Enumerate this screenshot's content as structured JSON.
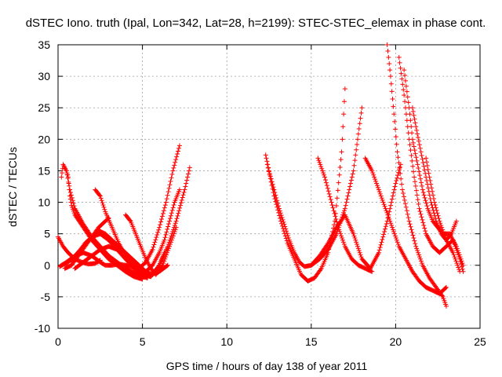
{
  "chart_data": {
    "type": "scatter",
    "title": "dSTEC Iono. truth (Ipal, Lon=342, Lat=28, h=2199): STEC-STEC_elemax in phase cont.",
    "xlabel": "GPS time / hours of day 138 of year 2011",
    "ylabel": "dSTEC  / TECUs",
    "xlim": [
      0,
      25
    ],
    "ylim": [
      -10,
      35
    ],
    "xticks": [
      "0",
      "5",
      "10",
      "15",
      "20",
      "25"
    ],
    "yticks": [
      "-10",
      "-5",
      "0",
      "5",
      "10",
      "15",
      "20",
      "25",
      "30",
      "35"
    ],
    "grid": true,
    "marker": "+",
    "color": "#ff0000",
    "series": [
      {
        "x": [
          0.0,
          0.3,
          0.6,
          1.0,
          1.4,
          1.8,
          2.2,
          2.5
        ],
        "y": [
          4.5,
          3.0,
          2.0,
          1.0,
          0.5,
          0.2,
          0.3,
          0.8
        ]
      },
      {
        "x": [
          0.2,
          0.3,
          0.5,
          0.7,
          1.0,
          1.5,
          2.0,
          2.5,
          3.0,
          3.5,
          4.0,
          4.5,
          5.0,
          5.3
        ],
        "y": [
          14,
          16,
          15,
          12,
          9,
          6.5,
          4.5,
          3,
          1.5,
          0.5,
          -0.5,
          -1.2,
          -1.8,
          -2.0
        ]
      },
      {
        "x": [
          0.5,
          0.6,
          0.7,
          0.8,
          1.0,
          1.5,
          2.0,
          2.5,
          3.0,
          3.5,
          4.0,
          4.5,
          5.0
        ],
        "y": [
          15,
          14,
          11,
          9.5,
          8,
          6,
          4,
          2.5,
          1,
          0,
          -1,
          -1.8,
          -2.2
        ]
      },
      {
        "x": [
          0.1,
          0.5,
          1.0,
          1.5,
          2.0,
          2.5,
          2.8,
          3.2,
          3.6,
          4.0,
          4.4,
          4.8,
          5.2,
          5.6,
          6.0,
          6.4,
          6.8,
          7.2
        ],
        "y": [
          -0.2,
          0.5,
          1.5,
          2.0,
          1.5,
          0.5,
          0.0,
          0.0,
          0.2,
          0.0,
          -0.3,
          -0.5,
          0.5,
          2.5,
          6,
          10,
          15,
          19
        ]
      },
      {
        "x": [
          0.2,
          0.6,
          1.0,
          1.5,
          2.0,
          2.5,
          3.0,
          3.5,
          4.0,
          4.5,
          5.0,
          5.5,
          6.0,
          6.5,
          7.0,
          7.5,
          7.8
        ],
        "y": [
          0,
          0.5,
          1.5,
          3,
          4.5,
          5,
          4,
          2.5,
          1,
          -0.5,
          -1.5,
          -1.8,
          0,
          3,
          7,
          12,
          15.5
        ]
      },
      {
        "x": [
          0.4,
          0.8,
          1.2,
          1.6,
          2.0,
          2.4,
          2.8,
          3.0
        ],
        "y": [
          -0.5,
          0,
          1.5,
          3,
          4.5,
          6,
          7,
          7.5
        ]
      },
      {
        "x": [
          2.2,
          2.5,
          2.8,
          3.2,
          3.6,
          4.0,
          4.5,
          5.0,
          5.5,
          6.0,
          6.5
        ],
        "y": [
          12,
          11,
          8.5,
          6,
          3.5,
          1.5,
          0,
          -1,
          -1.5,
          -1,
          0
        ]
      },
      {
        "x": [
          0.8,
          1.2,
          1.6,
          2.0,
          2.4,
          2.8,
          3.2,
          3.6,
          4.0,
          4.4,
          4.8,
          5.2,
          5.6,
          6.0,
          6.3
        ],
        "y": [
          0.5,
          2,
          3.5,
          4.5,
          5.5,
          5,
          4,
          3,
          2,
          1,
          0,
          -1,
          -1.5,
          0,
          2
        ]
      },
      {
        "x": [
          4.0,
          4.3,
          4.6,
          4.9,
          5.2,
          5.5,
          5.8,
          6.2,
          6.6,
          7.0
        ],
        "y": [
          8,
          7,
          5,
          3,
          1,
          -0.5,
          -1.5,
          0,
          3,
          6
        ]
      },
      {
        "x": [
          1.0,
          1.5,
          2.0,
          2.5,
          3.0,
          3.5,
          3.8
        ],
        "y": [
          -0.5,
          0.5,
          1.5,
          2.5,
          3,
          2.5,
          2
        ]
      },
      {
        "x": [
          5.2,
          5.6,
          6.0,
          6.3,
          6.6,
          6.9,
          7.2
        ],
        "y": [
          -1,
          0,
          2,
          4,
          7,
          10,
          12
        ]
      },
      {
        "x": [
          12.3,
          12.5,
          12.8,
          13.1,
          13.4,
          13.7,
          14.0,
          14.3,
          14.6,
          15.0,
          15.5,
          16.0,
          16.5,
          17.0,
          17.5,
          18.0
        ],
        "y": [
          17.5,
          15,
          12,
          9,
          6.5,
          4,
          2,
          0.5,
          -0.2,
          0,
          1,
          2.5,
          5,
          9,
          15,
          25
        ]
      },
      {
        "x": [
          12.4,
          12.8,
          13.2,
          13.6,
          14.0,
          14.4,
          14.8,
          15.2,
          15.6,
          16.0,
          16.4,
          16.8,
          17.0
        ],
        "y": [
          16,
          11,
          7,
          3.5,
          1,
          -1.5,
          -2.5,
          -2,
          -0.5,
          2,
          7,
          18,
          28
        ]
      },
      {
        "x": [
          15.0,
          15.5,
          16.0,
          16.5,
          17.0,
          17.5,
          18.0,
          18.5,
          19.0,
          19.5,
          20.0,
          20.3
        ],
        "y": [
          0,
          1.5,
          3.5,
          6,
          8,
          5,
          1,
          -0.5,
          2,
          7,
          13,
          16
        ]
      },
      {
        "x": [
          15.4,
          15.8,
          16.2,
          16.6,
          17.0,
          17.4,
          17.8,
          18.2,
          18.6
        ],
        "y": [
          17,
          14,
          10,
          6,
          3,
          1,
          0,
          -0.5,
          -1
        ]
      },
      {
        "x": [
          18.2,
          18.6,
          19.0,
          19.4,
          19.8,
          20.2,
          20.6,
          21.0,
          21.4,
          21.8,
          22.2,
          22.6,
          23.0
        ],
        "y": [
          17,
          15,
          12,
          9,
          6,
          3,
          1,
          -1,
          -2.5,
          -3.5,
          -4,
          -4.5,
          -3.5
        ]
      },
      {
        "x": [
          19.5,
          19.7,
          19.9,
          20.1,
          20.4,
          20.8,
          21.2,
          21.6,
          22.0,
          22.4,
          22.8,
          23.0
        ],
        "y": [
          35,
          30,
          24,
          18,
          12,
          7,
          3,
          0,
          -2,
          -3.5,
          -5,
          -6.5
        ]
      },
      {
        "x": [
          20.2,
          20.5,
          20.8,
          21.1,
          21.4,
          21.8,
          22.2,
          22.6,
          23.0,
          23.4,
          23.8,
          24.0
        ],
        "y": [
          33,
          27,
          20,
          14,
          9,
          5,
          3,
          2,
          3,
          4,
          1,
          -1
        ]
      },
      {
        "x": [
          20.5,
          20.8,
          21.0,
          21.3,
          21.6,
          21.9,
          22.2,
          22.5,
          22.8,
          23.2,
          23.6,
          24.0
        ],
        "y": [
          31,
          25,
          20,
          16,
          12,
          9,
          7,
          6,
          5,
          5,
          3,
          0
        ]
      },
      {
        "x": [
          21.0,
          21.2,
          21.5,
          21.8,
          22.1,
          22.4,
          22.7,
          23.0,
          23.3,
          23.6
        ],
        "y": [
          25,
          22,
          18,
          14,
          10,
          7,
          5,
          4,
          5,
          7
        ]
      },
      {
        "x": [
          21.8,
          22.0,
          22.3,
          22.6,
          23.0,
          23.4,
          23.8
        ],
        "y": [
          17,
          14,
          10,
          7,
          4,
          2,
          -1
        ]
      }
    ]
  }
}
